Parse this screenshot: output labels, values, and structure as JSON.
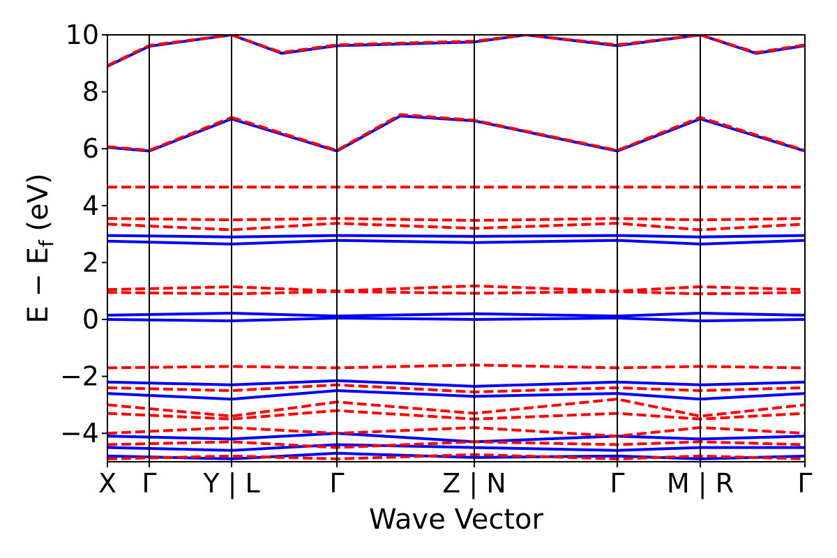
{
  "chart_data": {
    "type": "line",
    "title": "",
    "xlabel": "Wave Vector",
    "ylabel_parts": {
      "main": "E − E",
      "sub": "f",
      "unit": " (eV)"
    },
    "ylim": [
      -5,
      10
    ],
    "yticks": [
      10,
      8,
      6,
      4,
      2,
      0,
      -2,
      -4
    ],
    "ytick_labels": [
      "10",
      "8",
      "6",
      "4",
      "2",
      "0",
      "−2",
      "−4"
    ],
    "grid": false,
    "legend": "none",
    "kpath": {
      "positions": [
        0,
        0.06,
        0.178,
        0.329,
        0.526,
        0.731,
        0.85,
        1.0
      ],
      "labels": [
        "X",
        "Γ",
        "Y | L",
        "Γ",
        "Z | N",
        "Γ",
        "M | R",
        "Γ"
      ]
    },
    "colors": {
      "spin_up": "#0000ff",
      "spin_down": "#ff0000",
      "axes": "#000000"
    },
    "series": [
      {
        "style": "solid",
        "color": "#0000ff",
        "segments": [
          {
            "x": [
              0,
              0.06,
              0.178
            ],
            "y": [
              6.05,
              5.92,
              7.05
            ]
          },
          {
            "x": [
              0.178,
              0.329,
              0.42,
              0.526,
              0.731,
              0.85,
              1.0
            ],
            "y": [
              7.05,
              5.92,
              7.15,
              6.98,
              5.92,
              7.05,
              5.92
            ]
          },
          {
            "x": [
              0,
              0.06,
              0.178
            ],
            "y": [
              8.9,
              9.6,
              10.0
            ]
          },
          {
            "x": [
              0.178,
              0.25,
              0.329,
              0.526,
              0.6,
              0.731,
              0.85,
              0.93,
              1.0
            ],
            "y": [
              10.0,
              9.35,
              9.62,
              9.75,
              10.0,
              9.62,
              10.0,
              9.35,
              9.62
            ]
          },
          {
            "x": [
              0,
              0.178,
              0.329,
              0.526,
              0.731,
              0.85,
              1.0
            ],
            "y": [
              2.95,
              2.9,
              2.95,
              2.92,
              2.95,
              2.9,
              2.95
            ]
          },
          {
            "x": [
              0,
              0.178,
              0.329,
              0.526,
              0.731,
              0.85,
              1.0
            ],
            "y": [
              2.75,
              2.65,
              2.78,
              2.7,
              2.78,
              2.65,
              2.78
            ]
          },
          {
            "x": [
              0,
              0.178,
              0.329,
              0.526,
              0.731,
              0.85,
              1.0
            ],
            "y": [
              0.15,
              0.22,
              0.12,
              0.2,
              0.12,
              0.22,
              0.15
            ]
          },
          {
            "x": [
              0,
              0.178,
              0.329,
              0.526,
              0.731,
              0.85,
              1.0
            ],
            "y": [
              0.0,
              -0.05,
              0.05,
              0.0,
              0.05,
              -0.05,
              0.0
            ]
          },
          {
            "x": [
              0,
              0.178,
              0.329,
              0.526,
              0.731,
              0.85,
              1.0
            ],
            "y": [
              -2.2,
              -2.3,
              -2.15,
              -2.35,
              -2.2,
              -2.3,
              -2.2
            ]
          },
          {
            "x": [
              0,
              0.178,
              0.329,
              0.526,
              0.731,
              0.85,
              1.0
            ],
            "y": [
              -2.6,
              -2.8,
              -2.5,
              -2.7,
              -2.6,
              -2.8,
              -2.6
            ]
          },
          {
            "x": [
              0,
              0.178,
              0.329,
              0.526,
              0.731,
              0.85,
              1.0
            ],
            "y": [
              -4.1,
              -4.2,
              -4.0,
              -4.3,
              -4.1,
              -4.2,
              -4.1
            ]
          },
          {
            "x": [
              0,
              0.178,
              0.329,
              0.526,
              0.731,
              0.85,
              1.0
            ],
            "y": [
              -4.5,
              -4.6,
              -4.4,
              -4.5,
              -4.6,
              -4.5,
              -4.5
            ]
          },
          {
            "x": [
              0,
              0.178,
              0.329,
              0.526,
              0.731,
              0.85,
              1.0
            ],
            "y": [
              -4.8,
              -4.9,
              -4.7,
              -4.85,
              -4.8,
              -4.9,
              -4.8
            ]
          }
        ]
      },
      {
        "style": "dashed",
        "color": "#ff0000",
        "segments": [
          {
            "x": [
              0,
              0.06,
              0.178
            ],
            "y": [
              6.07,
              5.94,
              7.1
            ]
          },
          {
            "x": [
              0.178,
              0.329,
              0.42,
              0.526,
              0.731,
              0.85,
              1.0
            ],
            "y": [
              7.1,
              5.94,
              7.2,
              7.0,
              5.94,
              7.1,
              5.94
            ]
          },
          {
            "x": [
              0,
              0.06,
              0.178
            ],
            "y": [
              8.92,
              9.63,
              10.0
            ]
          },
          {
            "x": [
              0.178,
              0.25,
              0.329,
              0.526,
              0.6,
              0.731,
              0.85,
              0.93,
              1.0
            ],
            "y": [
              10.0,
              9.38,
              9.65,
              9.78,
              10.0,
              9.65,
              10.0,
              9.38,
              9.65
            ]
          },
          {
            "x": [
              0,
              1.0
            ],
            "y": [
              4.65,
              4.65
            ]
          },
          {
            "x": [
              0,
              0.178,
              0.329,
              0.526,
              0.731,
              0.85,
              1.0
            ],
            "y": [
              3.55,
              3.5,
              3.55,
              3.48,
              3.55,
              3.5,
              3.55
            ]
          },
          {
            "x": [
              0,
              0.178,
              0.329,
              0.526,
              0.731,
              0.85,
              1.0
            ],
            "y": [
              3.35,
              3.15,
              3.38,
              3.2,
              3.38,
              3.15,
              3.35
            ]
          },
          {
            "x": [
              0,
              0.178,
              0.329,
              0.526,
              0.731,
              0.85,
              1.0
            ],
            "y": [
              1.05,
              1.15,
              1.0,
              1.18,
              1.0,
              1.15,
              1.05
            ]
          },
          {
            "x": [
              0,
              0.178,
              0.329,
              0.526,
              0.731,
              0.85,
              1.0
            ],
            "y": [
              0.95,
              0.9,
              0.98,
              0.92,
              0.98,
              0.9,
              0.95
            ]
          },
          {
            "x": [
              0,
              0.178,
              0.329,
              0.526,
              0.731,
              0.85,
              1.0
            ],
            "y": [
              -1.7,
              -1.65,
              -1.7,
              -1.6,
              -1.7,
              -1.65,
              -1.7
            ]
          },
          {
            "x": [
              0,
              0.178,
              0.329,
              0.526,
              0.731,
              0.85,
              1.0
            ],
            "y": [
              -2.4,
              -2.5,
              -2.3,
              -2.55,
              -2.4,
              -2.5,
              -2.4
            ]
          },
          {
            "x": [
              0,
              0.178,
              0.329,
              0.526,
              0.731,
              0.85,
              1.0
            ],
            "y": [
              -3.0,
              -3.4,
              -2.9,
              -3.3,
              -2.8,
              -3.4,
              -3.0
            ]
          },
          {
            "x": [
              0,
              0.178,
              0.329,
              0.526,
              0.731,
              0.85,
              1.0
            ],
            "y": [
              -3.3,
              -3.5,
              -3.2,
              -3.5,
              -3.3,
              -3.5,
              -3.3
            ]
          },
          {
            "x": [
              0,
              0.178,
              0.329,
              0.526,
              0.731,
              0.85,
              1.0
            ],
            "y": [
              -4.0,
              -3.8,
              -4.0,
              -3.8,
              -4.1,
              -3.8,
              -4.0
            ]
          },
          {
            "x": [
              0,
              0.178,
              0.329,
              0.526,
              0.731,
              0.85,
              1.0
            ],
            "y": [
              -4.4,
              -4.3,
              -4.5,
              -4.3,
              -4.4,
              -4.3,
              -4.4
            ]
          },
          {
            "x": [
              0,
              0.178,
              0.329,
              0.526,
              0.731,
              0.85,
              1.0
            ],
            "y": [
              -4.9,
              -4.8,
              -4.9,
              -4.75,
              -4.9,
              -4.8,
              -4.9
            ]
          }
        ]
      }
    ]
  }
}
